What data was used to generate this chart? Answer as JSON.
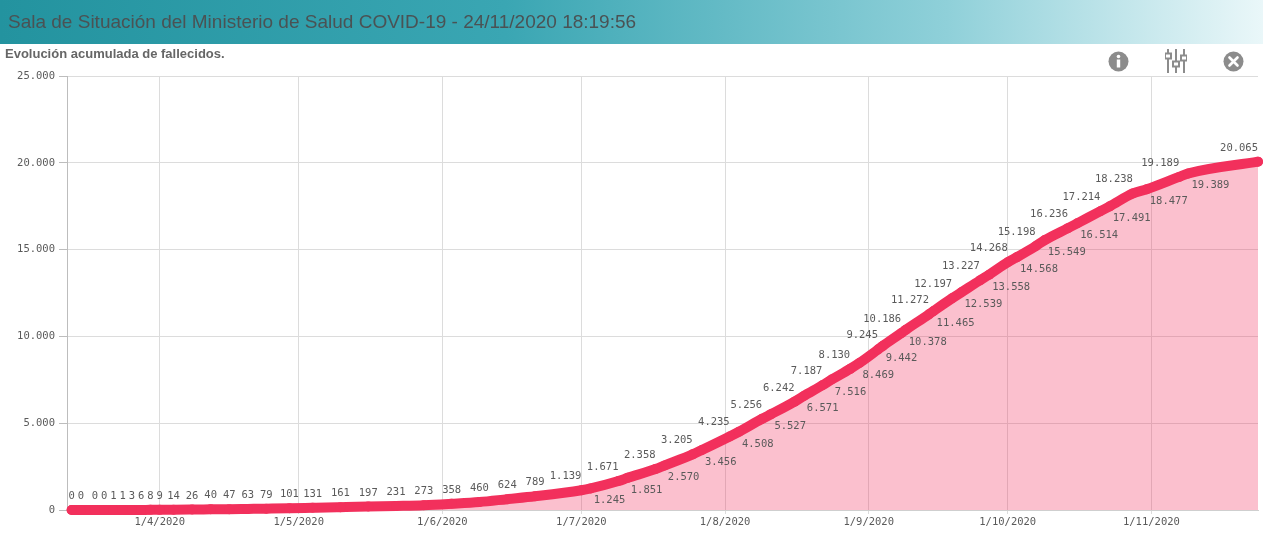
{
  "chart_data": {
    "type": "area",
    "title": "Sala de Situación del Ministerio de Salud COVID-19 - 24/11/2020 18:19:56",
    "subtitle": "Evolución acumulada de fallecidos.",
    "x": [
      "2020-03-13",
      "2020-03-15",
      "2020-03-18",
      "2020-03-20",
      "2020-03-22",
      "2020-03-24",
      "2020-03-26",
      "2020-03-28",
      "2020-03-30",
      "2020-04-01",
      "2020-04-04",
      "2020-04-08",
      "2020-04-12",
      "2020-04-16",
      "2020-04-20",
      "2020-04-24",
      "2020-04-29",
      "2020-05-04",
      "2020-05-10",
      "2020-05-16",
      "2020-05-22",
      "2020-05-28",
      "2020-06-03",
      "2020-06-09",
      "2020-06-15",
      "2020-06-21",
      "2020-07-01",
      "2020-07-03",
      "2020-07-09",
      "2020-07-11",
      "2020-07-17",
      "2020-07-19",
      "2020-07-25",
      "2020-07-27",
      "2020-08-02",
      "2020-08-04",
      "2020-08-09",
      "2020-08-11",
      "2020-08-16",
      "2020-08-18",
      "2020-08-22",
      "2020-08-24",
      "2020-08-28",
      "2020-08-30",
      "2020-09-03",
      "2020-09-04",
      "2020-09-08",
      "2020-09-09",
      "2020-09-14",
      "2020-09-15",
      "2020-09-19",
      "2020-09-21",
      "2020-09-25",
      "2020-09-27",
      "2020-10-01",
      "2020-10-03",
      "2020-10-07",
      "2020-10-09",
      "2020-10-14",
      "2020-10-16",
      "2020-10-21",
      "2020-10-23",
      "2020-10-28",
      "2020-10-31",
      "2020-11-07",
      "2020-11-09",
      "2020-11-24"
    ],
    "values": [
      0,
      0,
      0,
      0,
      1,
      1,
      3,
      6,
      8,
      9,
      14,
      26,
      40,
      47,
      63,
      79,
      101,
      131,
      161,
      197,
      231,
      273,
      358,
      460,
      624,
      789,
      1139,
      1245,
      1671,
      1851,
      2358,
      2570,
      3205,
      3456,
      4235,
      4508,
      5256,
      5527,
      6242,
      6571,
      7187,
      7516,
      8130,
      8469,
      9245,
      9442,
      10186,
      10378,
      11272,
      11465,
      12197,
      12539,
      13227,
      13558,
      14268,
      14568,
      15198,
      15549,
      16236,
      16514,
      17214,
      17491,
      18238,
      18477,
      19189,
      19389,
      20065
    ],
    "value_labels": [
      "0",
      "0",
      "0",
      "0",
      "1",
      "1",
      "3",
      "6",
      "8",
      "9",
      "14",
      "26",
      "40",
      "47",
      "63",
      "79",
      "101",
      "131",
      "161",
      "197",
      "231",
      "273",
      "358",
      "460",
      "624",
      "789",
      "1.139",
      "1.245",
      "1.671",
      "1.851",
      "2.358",
      "2.570",
      "3.205",
      "3.456",
      "4.235",
      "4.508",
      "5.256",
      "5.527",
      "6.242",
      "6.571",
      "7.187",
      "7.516",
      "8.130",
      "8.469",
      "9.245",
      "9.442",
      "10.186",
      "10.378",
      "11.272",
      "11.465",
      "12.197",
      "12.539",
      "13.227",
      "13.558",
      "14.268",
      "14.568",
      "15.198",
      "15.549",
      "16.236",
      "16.514",
      "17.214",
      "17.491",
      "18.238",
      "18.477",
      "19.189",
      "19.389",
      "20.065"
    ],
    "color": "#f2305c",
    "marker": "circle",
    "grid": true,
    "xlim": [
      "2020-03-12",
      "2020-11-24"
    ],
    "xticks": [
      {
        "value": "2020-04-01",
        "label": "1/4/2020"
      },
      {
        "value": "2020-05-01",
        "label": "1/5/2020"
      },
      {
        "value": "2020-06-01",
        "label": "1/6/2020"
      },
      {
        "value": "2020-07-01",
        "label": "1/7/2020"
      },
      {
        "value": "2020-08-01",
        "label": "1/8/2020"
      },
      {
        "value": "2020-09-01",
        "label": "1/9/2020"
      },
      {
        "value": "2020-10-01",
        "label": "1/10/2020"
      },
      {
        "value": "2020-11-01",
        "label": "1/11/2020"
      }
    ],
    "ylim": [
      0,
      25000
    ],
    "yticks": [
      0,
      {
        "value": 5000,
        "label": "5.000"
      },
      {
        "value": 10000,
        "label": "10.000"
      },
      {
        "value": 15000,
        "label": "15.000"
      },
      {
        "value": 20000,
        "label": "20.000"
      },
      {
        "value": 25000,
        "label": "25.000"
      }
    ]
  }
}
